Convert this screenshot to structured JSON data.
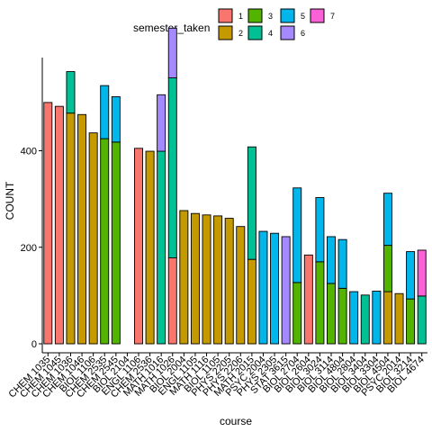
{
  "chart_data": {
    "type": "bar",
    "stacked": true,
    "xlabel": "course",
    "ylabel": "COUNT",
    "ylim": [
      0,
      590
    ],
    "yticks": [
      0,
      200,
      400
    ],
    "legend": {
      "title": "semester_taken",
      "position": "top",
      "entries": [
        {
          "key": "1",
          "color": "#F8766D"
        },
        {
          "key": "2",
          "color": "#C49A00"
        },
        {
          "key": "3",
          "color": "#53B400"
        },
        {
          "key": "4",
          "color": "#00C094"
        },
        {
          "key": "5",
          "color": "#00B6EB"
        },
        {
          "key": "6",
          "color": "#A58AFF"
        },
        {
          "key": "7",
          "color": "#FB61D7"
        }
      ]
    },
    "categories": [
      "CHEM 1035",
      "CHEM 1045",
      "CHEM 1036",
      "CHEM 1046",
      "BIOL 1106",
      "CHEM 2535",
      "CHEM 2545",
      "BIOL 2104",
      "ENGL 1106",
      "CHEM 2536",
      "MATH 1016",
      "MATH 1026",
      "BIOL 2004",
      "ENGL 1105",
      "MATH 1116",
      "BIOL 1105",
      "PHYS 2205",
      "PHYS 2206",
      "MATH 2015",
      "PSYC 2004",
      "PHYS 2305",
      "STAT 3615",
      "BIOL 2704",
      "BIOL 2604",
      "BIOL 3024",
      "BIOL 3114",
      "BIOL 4804",
      "BIOL 2804",
      "BIOL 3404",
      "BIOL 3304",
      "BIOL 4504",
      "PSYC 2014",
      "BIOL 3214",
      "BIOL 4674"
    ],
    "series": [
      {
        "name": "1",
        "values": [
          500,
          492,
          0,
          0,
          0,
          0,
          0,
          0,
          405,
          0,
          0,
          178,
          0,
          0,
          0,
          0,
          0,
          0,
          0,
          0,
          0,
          0,
          0,
          184,
          0,
          0,
          0,
          0,
          0,
          0,
          0,
          0,
          0,
          0
        ]
      },
      {
        "name": "2",
        "values": [
          0,
          0,
          478,
          475,
          437,
          0,
          0,
          0,
          0,
          399,
          0,
          0,
          276,
          270,
          267,
          265,
          260,
          243,
          175,
          0,
          0,
          0,
          0,
          0,
          0,
          0,
          0,
          0,
          0,
          0,
          108,
          104,
          0,
          0
        ]
      },
      {
        "name": "3",
        "values": [
          0,
          0,
          0,
          0,
          0,
          425,
          418,
          0,
          0,
          0,
          0,
          0,
          0,
          0,
          0,
          0,
          0,
          0,
          0,
          0,
          0,
          0,
          127,
          0,
          170,
          125,
          115,
          0,
          0,
          0,
          96,
          0,
          93,
          0
        ]
      },
      {
        "name": "4",
        "values": [
          0,
          0,
          86,
          0,
          0,
          0,
          0,
          0,
          0,
          0,
          399,
          373,
          0,
          0,
          0,
          0,
          0,
          0,
          233,
          0,
          0,
          0,
          0,
          0,
          0,
          0,
          0,
          0,
          101,
          0,
          0,
          0,
          0,
          99
        ]
      },
      {
        "name": "5",
        "values": [
          0,
          0,
          0,
          0,
          0,
          110,
          94,
          0,
          0,
          0,
          0,
          0,
          0,
          0,
          0,
          0,
          0,
          0,
          0,
          233,
          229,
          0,
          196,
          0,
          133,
          97,
          101,
          108,
          0,
          109,
          108,
          0,
          98,
          0
        ]
      },
      {
        "name": "6",
        "values": [
          0,
          0,
          0,
          0,
          0,
          0,
          0,
          0,
          0,
          0,
          117,
          103,
          0,
          0,
          0,
          0,
          0,
          0,
          0,
          0,
          0,
          222,
          0,
          0,
          0,
          0,
          0,
          0,
          0,
          0,
          0,
          0,
          0,
          0
        ]
      },
      {
        "name": "7",
        "values": [
          0,
          0,
          0,
          0,
          0,
          0,
          0,
          0,
          0,
          0,
          0,
          0,
          0,
          0,
          0,
          0,
          0,
          0,
          0,
          0,
          0,
          0,
          0,
          0,
          0,
          0,
          0,
          0,
          0,
          0,
          0,
          0,
          0,
          95
        ]
      }
    ]
  }
}
